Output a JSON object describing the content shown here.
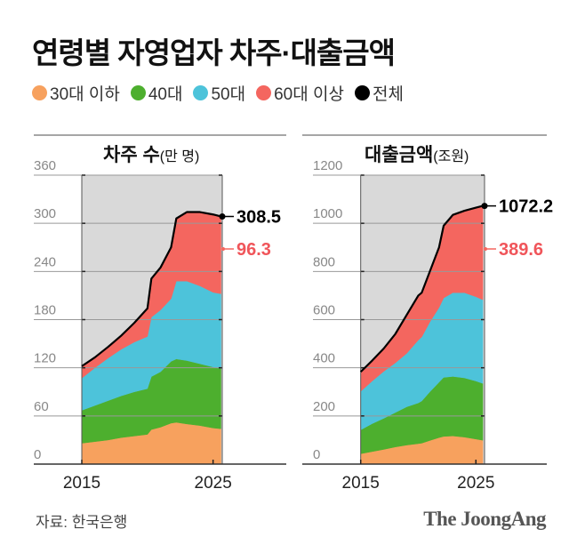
{
  "title": "연령별 자영업자 차주·대출금액",
  "legend": [
    {
      "label": "30대 이하",
      "color": "#f7a15e"
    },
    {
      "label": "40대",
      "color": "#4daf2e"
    },
    {
      "label": "50대",
      "color": "#4dc3da"
    },
    {
      "label": "60대 이상",
      "color": "#f4665f"
    },
    {
      "label": "전체",
      "color": "#000000"
    }
  ],
  "chart_data": [
    {
      "type": "area",
      "stacked": true,
      "title": "차주 수",
      "unit": "(만 명)",
      "x": [
        2015,
        2016,
        2017,
        2018,
        2019,
        2020,
        2020.3,
        2021,
        2021.8,
        2022.2,
        2023,
        2024,
        2025,
        2025.6
      ],
      "xticks": [
        "2015",
        "2025"
      ],
      "xlim": [
        2015,
        2025.7
      ],
      "ylim": [
        0,
        360
      ],
      "yticks": [
        0,
        60,
        120,
        180,
        240,
        300,
        360
      ],
      "grid": true,
      "background": "#d9d9d9",
      "series": [
        {
          "name": "30대 이하",
          "values": [
            26,
            28,
            30,
            33,
            35,
            37,
            43,
            46,
            51,
            52,
            50,
            48,
            45,
            44
          ]
        },
        {
          "name": "40대",
          "values": [
            41,
            45,
            49,
            52,
            55,
            57,
            66,
            69,
            77,
            79,
            79,
            77,
            76,
            75
          ]
        },
        {
          "name": "50대",
          "values": [
            40,
            47,
            53,
            58,
            62,
            65,
            74,
            77,
            78,
            97,
            99,
            97,
            93,
            93.2
          ]
        },
        {
          "name": "60대 이상",
          "values": [
            15,
            13,
            14,
            17,
            24,
            35,
            48,
            53,
            64,
            78,
            86,
            92,
            97,
            96.3
          ]
        }
      ],
      "total_label": "308.5",
      "senior_label": "96.3"
    },
    {
      "type": "area",
      "stacked": true,
      "title": "대출금액",
      "unit": "(조원)",
      "x": [
        2015,
        2016,
        2017,
        2018,
        2019,
        2020,
        2020.3,
        2021,
        2021.8,
        2022.2,
        2023,
        2024,
        2025,
        2025.6
      ],
      "xticks": [
        "2015",
        "2025"
      ],
      "xlim": [
        2015,
        2025.75
      ],
      "ylim": [
        0,
        1200
      ],
      "yticks": [
        0,
        200,
        400,
        600,
        800,
        1000,
        1200
      ],
      "grid": true,
      "background": "#d9d9d9",
      "series": [
        {
          "name": "30대 이하",
          "values": [
            43,
            52,
            61,
            71,
            79,
            85,
            87,
            98,
            110,
            115,
            117,
            112,
            104,
            99
          ]
        },
        {
          "name": "40대",
          "values": [
            99,
            116,
            129,
            143,
            159,
            169,
            175,
            202,
            230,
            245,
            247,
            246,
            241,
            236
          ]
        },
        {
          "name": "50대",
          "values": [
            160,
            177,
            195,
            206,
            222,
            261,
            266,
            290,
            310,
            330,
            348,
            354,
            350,
            347.6
          ]
        },
        {
          "name": "60대 이상",
          "values": [
            81,
            85,
            95,
            120,
            160,
            185,
            184,
            210,
            250,
            300,
            323,
            340,
            370,
            389.6
          ]
        }
      ],
      "total_label": "1072.2",
      "senior_label": "389.6"
    }
  ],
  "footer": {
    "source": "자료: 한국은행",
    "logo": "The JoongAng"
  }
}
